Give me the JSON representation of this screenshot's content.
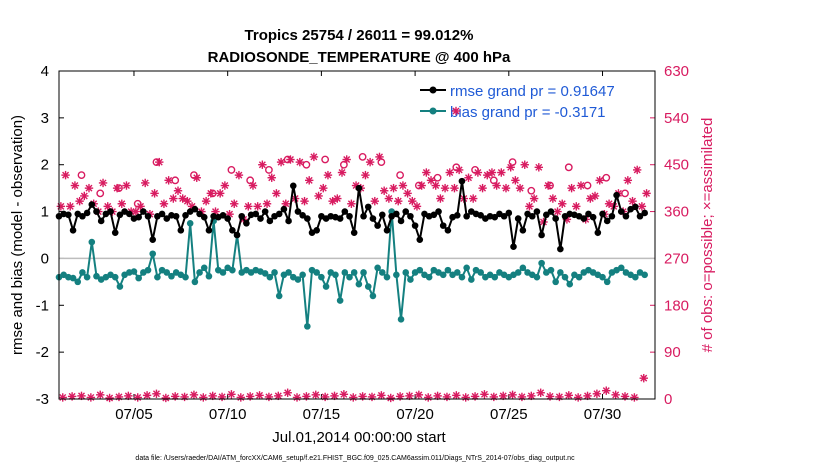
{
  "colors": {
    "rmse": "#000000",
    "bias": "#148080",
    "obs": "#d81b60",
    "zero": "#bdbdbd",
    "axis": "#000000",
    "legend_text": "#1f5ad6"
  },
  "chart_data": {
    "type": "line",
    "title": "Tropics 25754 / 26011 = 99.012%",
    "subtitle": "RADIOSONDE_TEMPERATURE @ 400 hPa",
    "xlabel": "Jul.01,2014 00:00:00 start",
    "ylabel": "rmse and bias (model - observation)",
    "y2label": "# of obs: o=possible; ×=assimilated",
    "footnote": "data file: /Users/raeder/DAI/ATM_forcXX/CAM6_setup/f.e21.FHIST_BGC.f09_025.CAM6assim.011/Diags_NTrS_2014-07/obs_diag_output.nc",
    "xlim": [
      1.0,
      32.8
    ],
    "ylim": [
      -3,
      4
    ],
    "y2lim": [
      0,
      630
    ],
    "x_ticks": [
      5,
      10,
      15,
      20,
      25,
      30
    ],
    "x_tick_labels": [
      "07/05",
      "07/10",
      "07/15",
      "07/20",
      "07/25",
      "07/30"
    ],
    "y_ticks": [
      -3,
      -2,
      -1,
      0,
      1,
      2,
      3,
      4
    ],
    "y_tick_labels": [
      "-3",
      "-2",
      "-1",
      "0",
      "1",
      "2",
      "3",
      "4"
    ],
    "y2_ticks": [
      0,
      90,
      180,
      270,
      360,
      450,
      540,
      630
    ],
    "y2_tick_labels": [
      "0",
      "90",
      "180",
      "270",
      "360",
      "450",
      "540",
      "630"
    ],
    "legend": [
      {
        "name": "rmse grand pr = 0.91647",
        "series": "rmse"
      },
      {
        "name": "bias grand pr = -0.3171",
        "series": "bias"
      }
    ],
    "legend_position": "top-right",
    "series": [
      {
        "name": "rmse",
        "x": [
          1.0,
          1.25,
          1.5,
          1.75,
          2.0,
          2.25,
          2.5,
          2.75,
          3.0,
          3.25,
          3.5,
          3.75,
          4.0,
          4.25,
          4.5,
          4.75,
          5.0,
          5.25,
          5.5,
          5.75,
          6.0,
          6.25,
          6.5,
          6.75,
          7.0,
          7.25,
          7.5,
          7.75,
          8.0,
          8.25,
          8.5,
          8.75,
          9.0,
          9.25,
          9.5,
          9.75,
          10.0,
          10.25,
          10.5,
          10.75,
          11.0,
          11.25,
          11.5,
          11.75,
          12.0,
          12.25,
          12.5,
          12.75,
          13.0,
          13.25,
          13.5,
          13.75,
          14.0,
          14.25,
          14.5,
          14.75,
          15.0,
          15.25,
          15.5,
          15.75,
          16.0,
          16.25,
          16.5,
          16.75,
          17.0,
          17.25,
          17.5,
          17.75,
          18.0,
          18.25,
          18.5,
          18.75,
          19.0,
          19.25,
          19.5,
          19.75,
          20.0,
          20.25,
          20.5,
          20.75,
          21.0,
          21.25,
          21.5,
          21.75,
          22.0,
          22.25,
          22.5,
          22.75,
          23.0,
          23.25,
          23.5,
          23.75,
          24.0,
          24.25,
          24.5,
          24.75,
          25.0,
          25.25,
          25.5,
          25.75,
          26.0,
          26.25,
          26.5,
          26.75,
          27.0,
          27.25,
          27.5,
          27.75,
          28.0,
          28.25,
          28.5,
          28.75,
          29.0,
          29.25,
          29.5,
          29.75,
          30.0,
          30.25,
          30.5,
          30.75,
          31.0,
          31.25,
          31.5,
          31.75,
          32.0,
          32.25
        ],
        "values": [
          0.9,
          0.95,
          0.93,
          0.6,
          0.95,
          0.9,
          0.97,
          1.15,
          1.0,
          0.8,
          0.95,
          1.0,
          0.55,
          0.93,
          1.0,
          0.95,
          0.85,
          0.88,
          1.0,
          0.9,
          0.4,
          0.9,
          0.95,
          0.85,
          0.92,
          0.9,
          0.6,
          0.92,
          1.0,
          1.05,
          0.95,
          0.88,
          0.6,
          0.9,
          0.88,
          0.92,
          0.85,
          0.6,
          0.5,
          0.9,
          0.75,
          0.93,
          0.95,
          0.85,
          1.0,
          0.8,
          0.9,
          0.95,
          1.05,
          0.8,
          1.55,
          1.0,
          0.92,
          0.85,
          0.55,
          0.6,
          0.9,
          0.85,
          0.9,
          0.88,
          0.85,
          1.0,
          0.9,
          0.55,
          1.5,
          0.9,
          1.1,
          0.85,
          0.7,
          0.93,
          0.6,
          0.9,
          0.95,
          0.8,
          1.0,
          0.9,
          0.7,
          0.4,
          0.95,
          0.9,
          0.93,
          1.0,
          0.7,
          0.6,
          0.88,
          0.92,
          1.65,
          0.9,
          1.0,
          0.95,
          0.92,
          0.85,
          0.9,
          0.88,
          0.95,
          0.9,
          0.97,
          0.25,
          0.85,
          0.6,
          0.95,
          0.9,
          1.0,
          0.5,
          0.93,
          1.0,
          0.85,
          0.2,
          0.9,
          0.95,
          0.93,
          0.9,
          0.85,
          0.95,
          0.88,
          0.55,
          0.95,
          0.8,
          0.9,
          1.35,
          1.0,
          0.9,
          1.05,
          1.1,
          0.9,
          0.97
        ]
      },
      {
        "name": "bias",
        "x": [
          1.0,
          1.25,
          1.5,
          1.75,
          2.0,
          2.25,
          2.5,
          2.75,
          3.0,
          3.25,
          3.5,
          3.75,
          4.0,
          4.25,
          4.5,
          4.75,
          5.0,
          5.25,
          5.5,
          5.75,
          6.0,
          6.25,
          6.5,
          6.75,
          7.0,
          7.25,
          7.5,
          7.75,
          8.0,
          8.25,
          8.5,
          8.75,
          9.0,
          9.25,
          9.5,
          9.75,
          10.0,
          10.25,
          10.5,
          10.75,
          11.0,
          11.25,
          11.5,
          11.75,
          12.0,
          12.25,
          12.5,
          12.75,
          13.0,
          13.25,
          13.5,
          13.75,
          14.0,
          14.25,
          14.5,
          14.75,
          15.0,
          15.25,
          15.5,
          15.75,
          16.0,
          16.25,
          16.5,
          16.75,
          17.0,
          17.25,
          17.5,
          17.75,
          18.0,
          18.25,
          18.5,
          18.75,
          19.0,
          19.25,
          19.5,
          19.75,
          20.0,
          20.25,
          20.5,
          20.75,
          21.0,
          21.25,
          21.5,
          21.75,
          22.0,
          22.25,
          22.5,
          22.75,
          23.0,
          23.25,
          23.5,
          23.75,
          24.0,
          24.25,
          24.5,
          24.75,
          25.0,
          25.25,
          25.5,
          25.75,
          26.0,
          26.25,
          26.5,
          26.75,
          27.0,
          27.25,
          27.5,
          27.75,
          28.0,
          28.25,
          28.5,
          28.75,
          29.0,
          29.25,
          29.5,
          29.75,
          30.0,
          30.25,
          30.5,
          30.75,
          31.0,
          31.25,
          31.5,
          31.75,
          32.0,
          32.25
        ],
        "values": [
          -0.4,
          -0.35,
          -0.4,
          -0.42,
          -0.5,
          -0.3,
          -0.4,
          0.35,
          -0.38,
          -0.45,
          -0.4,
          -0.35,
          -0.4,
          -0.6,
          -0.35,
          -0.3,
          -0.28,
          -0.42,
          -0.3,
          -0.25,
          0.1,
          -0.4,
          -0.25,
          -0.3,
          -0.38,
          -0.3,
          -0.35,
          -0.4,
          0.75,
          -0.5,
          -0.3,
          -0.2,
          -0.38,
          0.8,
          -0.25,
          -0.3,
          -0.2,
          -0.25,
          0.5,
          -0.3,
          -0.25,
          -0.3,
          -0.25,
          -0.28,
          -0.32,
          -0.4,
          -0.3,
          -0.8,
          -0.35,
          -0.3,
          -0.4,
          -0.45,
          -0.35,
          -1.45,
          -0.25,
          -0.3,
          -0.4,
          -0.6,
          -0.3,
          -0.35,
          -0.9,
          -0.3,
          -0.4,
          -0.3,
          -0.55,
          -0.3,
          -0.6,
          -0.8,
          -0.2,
          -0.3,
          -0.4,
          1.0,
          -0.35,
          -1.3,
          -0.3,
          -0.45,
          -0.3,
          -0.25,
          -0.35,
          -0.4,
          -0.25,
          -0.3,
          -0.35,
          -0.25,
          -0.35,
          -0.3,
          -0.4,
          -0.2,
          -0.45,
          -0.25,
          -0.3,
          -0.4,
          -0.35,
          -0.4,
          -0.3,
          -0.35,
          -0.4,
          -0.35,
          -0.3,
          -0.2,
          -0.3,
          -0.35,
          -0.4,
          -0.1,
          -0.3,
          -0.25,
          -0.5,
          -0.3,
          -0.4,
          -0.55,
          -0.35,
          -0.4,
          -0.3,
          -0.25,
          -0.3,
          -0.35,
          -0.4,
          -0.5,
          -0.3,
          -0.25,
          -0.2,
          -0.3,
          -0.35,
          -0.4,
          -0.3,
          -0.35
        ]
      },
      {
        "name": "obs_possible",
        "axis": "right",
        "marker": "circle",
        "x": [
          2.2,
          3.2,
          4.2,
          5.2,
          6.2,
          7.2,
          8.2,
          9.2,
          10.2,
          11.2,
          12.2,
          13.2,
          14.2,
          15.2,
          16.2,
          17.2,
          18.2,
          19.2,
          20.2,
          21.2,
          22.2,
          23.2,
          24.2,
          25.2,
          26.2,
          27.2,
          28.2,
          29.2,
          30.2,
          31.2
        ],
        "values": [
          430,
          395,
          405,
          375,
          455,
          420,
          430,
          395,
          440,
          420,
          440,
          460,
          450,
          460,
          450,
          465,
          455,
          430,
          410,
          425,
          445,
          440,
          420,
          455,
          400,
          410,
          445,
          410,
          425,
          395
        ]
      },
      {
        "name": "obs_assimilated",
        "axis": "right",
        "marker": "x",
        "x": [
          1.1,
          1.35,
          1.6,
          1.85,
          2.1,
          2.35,
          2.6,
          2.85,
          3.1,
          3.35,
          3.6,
          3.85,
          4.1,
          4.35,
          4.6,
          4.85,
          5.1,
          5.35,
          5.6,
          5.85,
          6.1,
          6.35,
          6.6,
          6.85,
          7.1,
          7.35,
          7.6,
          7.85,
          8.1,
          8.35,
          8.6,
          8.85,
          9.1,
          9.35,
          9.6,
          9.85,
          10.1,
          10.35,
          10.6,
          10.85,
          11.1,
          11.35,
          11.6,
          11.85,
          12.1,
          12.35,
          12.6,
          12.85,
          13.1,
          13.35,
          13.6,
          13.85,
          14.1,
          14.35,
          14.6,
          14.85,
          15.1,
          15.35,
          15.6,
          15.85,
          16.1,
          16.35,
          16.6,
          16.85,
          17.1,
          17.35,
          17.6,
          17.85,
          18.1,
          18.35,
          18.6,
          18.85,
          19.1,
          19.35,
          19.6,
          19.85,
          20.1,
          20.35,
          20.6,
          20.85,
          21.1,
          21.35,
          21.6,
          21.85,
          22.1,
          22.35,
          22.6,
          22.85,
          23.1,
          23.35,
          23.6,
          23.85,
          24.1,
          24.35,
          24.6,
          24.85,
          25.1,
          25.35,
          25.6,
          25.85,
          26.1,
          26.35,
          26.6,
          26.85,
          27.1,
          27.35,
          27.6,
          27.85,
          28.1,
          28.35,
          28.6,
          28.85,
          29.1,
          29.35,
          29.6,
          29.85,
          30.1,
          30.35,
          30.6,
          30.85,
          31.1,
          31.35,
          31.6,
          31.85,
          32.1,
          32.35
        ],
        "values": [
          370,
          430,
          370,
          410,
          380,
          390,
          405,
          375,
          360,
          415,
          370,
          360,
          405,
          375,
          410,
          360,
          360,
          370,
          415,
          355,
          395,
          455,
          375,
          420,
          385,
          400,
          385,
          380,
          370,
          425,
          360,
          380,
          395,
          360,
          395,
          410,
          355,
          375,
          430,
          345,
          370,
          410,
          370,
          450,
          375,
          425,
          395,
          455,
          375,
          460,
          385,
          455,
          380,
          420,
          465,
          390,
          405,
          430,
          380,
          385,
          435,
          460,
          375,
          410,
          405,
          430,
          455,
          380,
          465,
          400,
          385,
          405,
          380,
          410,
          395,
          380,
          370,
          410,
          435,
          420,
          410,
          385,
          405,
          435,
          405,
          440,
          385,
          425,
          385,
          435,
          405,
          430,
          435,
          410,
          435,
          405,
          445,
          420,
          405,
          450,
          370,
          385,
          445,
          340,
          410,
          385,
          360,
          375,
          345,
          405,
          370,
          410,
          345,
          385,
          390,
          420,
          355,
          375,
          370,
          395,
          360,
          420,
          380,
          440,
          370,
          395
        ]
      },
      {
        "name": "obs_bottom",
        "axis": "right",
        "marker": "x",
        "x": [
          1.2,
          1.7,
          2.2,
          2.7,
          3.2,
          3.7,
          4.2,
          4.7,
          5.2,
          5.7,
          6.2,
          6.7,
          7.2,
          7.7,
          8.2,
          8.7,
          9.2,
          9.7,
          10.2,
          10.7,
          11.2,
          11.7,
          12.2,
          12.7,
          13.2,
          13.7,
          14.2,
          14.7,
          15.2,
          15.7,
          16.2,
          16.7,
          17.2,
          17.7,
          18.2,
          18.7,
          19.2,
          19.7,
          20.2,
          20.7,
          21.2,
          21.7,
          22.2,
          22.7,
          23.2,
          23.7,
          24.2,
          24.7,
          25.2,
          25.7,
          26.2,
          26.7,
          27.2,
          27.7,
          28.2,
          28.7,
          29.2,
          29.7,
          30.2,
          30.7,
          31.2,
          31.7,
          32.2
        ],
        "values": [
          3,
          5,
          6,
          3,
          8,
          2,
          4,
          6,
          3,
          7,
          10,
          2,
          5,
          4,
          8,
          3,
          6,
          4,
          9,
          3,
          5,
          7,
          4,
          6,
          12,
          3,
          5,
          8,
          4,
          6,
          9,
          3,
          5,
          4,
          7,
          2,
          5,
          6,
          8,
          3,
          6,
          4,
          7,
          3,
          5,
          9,
          4,
          6,
          8,
          4,
          6,
          12,
          5,
          4,
          7,
          3,
          6,
          10,
          16,
          8,
          5,
          3,
          40
        ]
      }
    ]
  }
}
